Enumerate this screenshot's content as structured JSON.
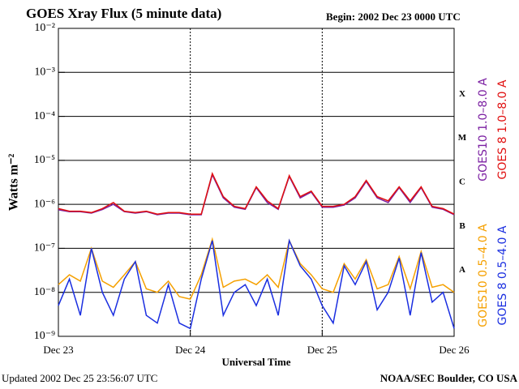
{
  "chart_data": {
    "type": "line",
    "title": "GOES Xray Flux (5 minute data)",
    "subtitle": "Begin:  2002 Dec 23 0000 UTC",
    "xlabel": "Universal Time",
    "ylabel": "Watts m⁻²",
    "footer_left": "Updated 2002 Dec 25 23:56:07 UTC",
    "footer_right": "NOAA/SEC Boulder, CO USA",
    "log_y": true,
    "grid": true,
    "xlim": [
      0,
      72
    ],
    "xticks": [
      {
        "value": 0,
        "label": "Dec 23"
      },
      {
        "value": 24,
        "label": "Dec 24"
      },
      {
        "value": 48,
        "label": "Dec 25"
      },
      {
        "value": 72,
        "label": "Dec 26"
      }
    ],
    "ylim": [
      1e-09,
      0.01
    ],
    "yticks": [
      {
        "value": 1e-09,
        "label": "10⁻⁹"
      },
      {
        "value": 1e-08,
        "label": "10⁻⁸"
      },
      {
        "value": 1e-07,
        "label": "10⁻⁷"
      },
      {
        "value": 1e-06,
        "label": "10⁻⁶"
      },
      {
        "value": 1e-05,
        "label": "10⁻⁵"
      },
      {
        "value": 0.0001,
        "label": "10⁻⁴"
      },
      {
        "value": 0.001,
        "label": "10⁻³"
      },
      {
        "value": 0.01,
        "label": "10⁻²"
      }
    ],
    "flare_classes": [
      {
        "label": "A",
        "value": 1e-08
      },
      {
        "label": "B",
        "value": 1e-07
      },
      {
        "label": "C",
        "value": 1e-06
      },
      {
        "label": "M",
        "value": 1e-05
      },
      {
        "label": "X",
        "value": 0.0001
      }
    ],
    "x": [
      0,
      2,
      4,
      6,
      8,
      10,
      12,
      14,
      16,
      18,
      20,
      22,
      24,
      26,
      28,
      30,
      32,
      34,
      36,
      38,
      40,
      42,
      44,
      46,
      48,
      50,
      52,
      54,
      56,
      58,
      60,
      62,
      64,
      66,
      68,
      70,
      72
    ],
    "series": [
      {
        "name": "GOES10 1.0–8.0 A",
        "color": "#7b1fa2",
        "values": [
          7.5e-07,
          6.8e-07,
          6.8e-07,
          6.3e-07,
          7.6e-07,
          1e-06,
          6.8e-07,
          6.3e-07,
          6.8e-07,
          5.8e-07,
          6.3e-07,
          6.3e-07,
          5.8e-07,
          5.8e-07,
          4.7e-06,
          1.4e-06,
          8.6e-07,
          7.7e-07,
          2.4e-06,
          1.1e-06,
          7.7e-07,
          4.3e-06,
          1.4e-06,
          1.9e-06,
          8.6e-07,
          8.6e-07,
          9.6e-07,
          1.4e-06,
          3.3e-06,
          1.4e-06,
          1.1e-06,
          2.4e-06,
          1.1e-06,
          2.4e-06,
          8.6e-07,
          7.7e-07,
          5.8e-07
        ]
      },
      {
        "name": "GOES 8 1.0–8.0 A",
        "color": "#e01010",
        "values": [
          8e-07,
          7e-07,
          7e-07,
          6.5e-07,
          8e-07,
          1.1e-06,
          7e-07,
          6.5e-07,
          7e-07,
          6e-07,
          6.5e-07,
          6.5e-07,
          6e-07,
          6e-07,
          5e-06,
          1.5e-06,
          9e-07,
          8e-07,
          2.5e-06,
          1.2e-06,
          8e-07,
          4.5e-06,
          1.5e-06,
          2e-06,
          9e-07,
          9e-07,
          1e-06,
          1.5e-06,
          3.5e-06,
          1.5e-06,
          1.2e-06,
          2.5e-06,
          1.2e-06,
          2.5e-06,
          9e-07,
          8e-07,
          6e-07
        ]
      },
      {
        "name": "GOES10 0.5–4.0 A",
        "color": "#f5a000",
        "values": [
          1.5e-08,
          2.5e-08,
          1.8e-08,
          1e-07,
          1.8e-08,
          1.3e-08,
          2.5e-08,
          5e-08,
          1.2e-08,
          1e-08,
          1.8e-08,
          8e-09,
          7e-09,
          2.5e-08,
          1.6e-07,
          1.3e-08,
          1.8e-08,
          2e-08,
          1.5e-08,
          2.5e-08,
          1.3e-08,
          1.5e-07,
          4.5e-08,
          2.5e-08,
          1.2e-08,
          1e-08,
          4.5e-08,
          2e-08,
          5.5e-08,
          1.2e-08,
          1.5e-08,
          6.5e-08,
          1.2e-08,
          8.5e-08,
          1.3e-08,
          1.5e-08,
          1e-08
        ]
      },
      {
        "name": "GOES 8 0.5–4.0 A",
        "color": "#1a2ee0",
        "values": [
          5e-09,
          2e-08,
          3e-09,
          1e-07,
          1e-08,
          3e-09,
          2e-08,
          5e-08,
          3e-09,
          2e-09,
          1.5e-08,
          2e-09,
          1.5e-09,
          2e-08,
          1.5e-07,
          3e-09,
          1e-08,
          1.5e-08,
          5e-09,
          2e-08,
          3e-09,
          1.5e-07,
          4e-08,
          2e-08,
          5e-09,
          2e-09,
          4e-08,
          1.5e-08,
          5e-08,
          4e-09,
          1e-08,
          6e-08,
          3e-09,
          8e-08,
          6e-09,
          1e-08,
          1.5e-09
        ]
      }
    ]
  }
}
